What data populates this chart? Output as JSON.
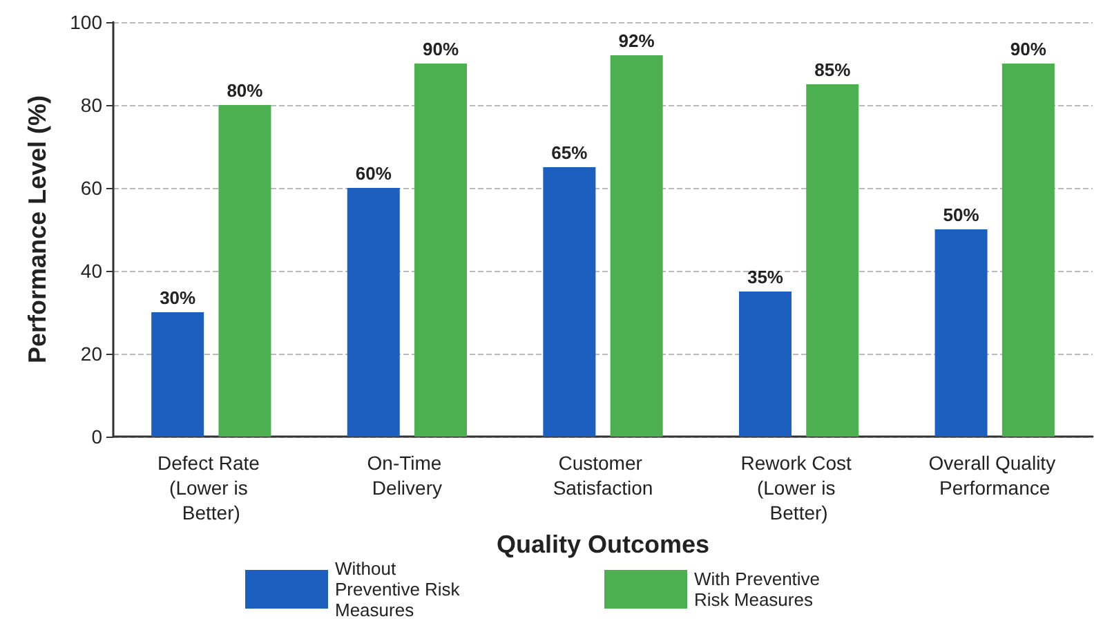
{
  "chart_data": {
    "type": "bar",
    "xlabel": "Quality Outcomes",
    "ylabel": "Performance Level (%)",
    "categories": [
      "Defect Rate (Lower is Better)",
      "On-Time Delivery",
      "Customer Satisfaction",
      "Rework Cost (Lower is Better)",
      "Overall Quality Performance"
    ],
    "series": [
      {
        "name": "Without Preventive Risk Measures",
        "color": "#1c5fbf",
        "values": [
          30,
          60,
          65,
          35,
          50
        ],
        "value_labels": [
          "30%",
          "60%",
          "65%",
          "35%",
          "50%"
        ]
      },
      {
        "name": "With Preventive Risk Measures",
        "color": "#4caf50",
        "values": [
          80,
          90,
          92,
          85,
          90
        ],
        "value_labels": [
          "80%",
          "90%",
          "92%",
          "85%",
          "90%"
        ]
      }
    ],
    "ylim": [
      0,
      100
    ],
    "yticks": [
      0,
      20,
      40,
      60,
      80,
      100
    ],
    "grid": "y",
    "legend": "bottom"
  }
}
